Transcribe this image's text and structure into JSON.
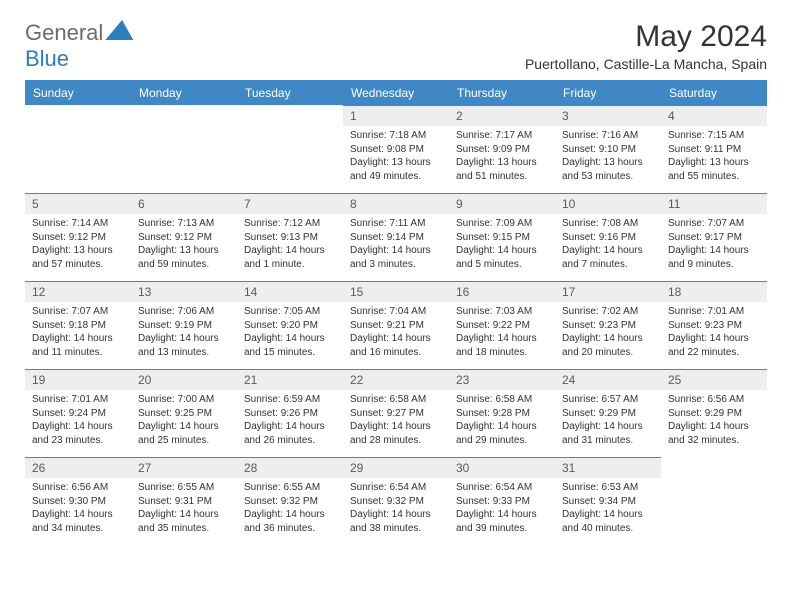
{
  "brand": {
    "text1": "General",
    "text2": "Blue"
  },
  "title": "May 2024",
  "location": "Puertollano, Castille-La Mancha, Spain",
  "colors": {
    "header_bg": "#3f88c5",
    "header_text": "#ffffff",
    "daynum_bg": "#edeef0",
    "daynum_text": "#5a5a5a",
    "border": "#3f88c5",
    "page_bg": "#ffffff",
    "body_text": "#333333",
    "logo_gray": "#6b6b6b",
    "logo_blue": "#2b7fbf"
  },
  "typography": {
    "month_title_fontsize": 30,
    "location_fontsize": 14,
    "weekday_fontsize": 12,
    "daynum_fontsize": 12,
    "info_fontsize": 10
  },
  "weekdays": [
    "Sunday",
    "Monday",
    "Tuesday",
    "Wednesday",
    "Thursday",
    "Friday",
    "Saturday"
  ],
  "first_weekday_index": 3,
  "days": [
    {
      "n": 1,
      "sunrise": "7:18 AM",
      "sunset": "9:08 PM",
      "daylight": "13 hours and 49 minutes."
    },
    {
      "n": 2,
      "sunrise": "7:17 AM",
      "sunset": "9:09 PM",
      "daylight": "13 hours and 51 minutes."
    },
    {
      "n": 3,
      "sunrise": "7:16 AM",
      "sunset": "9:10 PM",
      "daylight": "13 hours and 53 minutes."
    },
    {
      "n": 4,
      "sunrise": "7:15 AM",
      "sunset": "9:11 PM",
      "daylight": "13 hours and 55 minutes."
    },
    {
      "n": 5,
      "sunrise": "7:14 AM",
      "sunset": "9:12 PM",
      "daylight": "13 hours and 57 minutes."
    },
    {
      "n": 6,
      "sunrise": "7:13 AM",
      "sunset": "9:12 PM",
      "daylight": "13 hours and 59 minutes."
    },
    {
      "n": 7,
      "sunrise": "7:12 AM",
      "sunset": "9:13 PM",
      "daylight": "14 hours and 1 minute."
    },
    {
      "n": 8,
      "sunrise": "7:11 AM",
      "sunset": "9:14 PM",
      "daylight": "14 hours and 3 minutes."
    },
    {
      "n": 9,
      "sunrise": "7:09 AM",
      "sunset": "9:15 PM",
      "daylight": "14 hours and 5 minutes."
    },
    {
      "n": 10,
      "sunrise": "7:08 AM",
      "sunset": "9:16 PM",
      "daylight": "14 hours and 7 minutes."
    },
    {
      "n": 11,
      "sunrise": "7:07 AM",
      "sunset": "9:17 PM",
      "daylight": "14 hours and 9 minutes."
    },
    {
      "n": 12,
      "sunrise": "7:07 AM",
      "sunset": "9:18 PM",
      "daylight": "14 hours and 11 minutes."
    },
    {
      "n": 13,
      "sunrise": "7:06 AM",
      "sunset": "9:19 PM",
      "daylight": "14 hours and 13 minutes."
    },
    {
      "n": 14,
      "sunrise": "7:05 AM",
      "sunset": "9:20 PM",
      "daylight": "14 hours and 15 minutes."
    },
    {
      "n": 15,
      "sunrise": "7:04 AM",
      "sunset": "9:21 PM",
      "daylight": "14 hours and 16 minutes."
    },
    {
      "n": 16,
      "sunrise": "7:03 AM",
      "sunset": "9:22 PM",
      "daylight": "14 hours and 18 minutes."
    },
    {
      "n": 17,
      "sunrise": "7:02 AM",
      "sunset": "9:23 PM",
      "daylight": "14 hours and 20 minutes."
    },
    {
      "n": 18,
      "sunrise": "7:01 AM",
      "sunset": "9:23 PM",
      "daylight": "14 hours and 22 minutes."
    },
    {
      "n": 19,
      "sunrise": "7:01 AM",
      "sunset": "9:24 PM",
      "daylight": "14 hours and 23 minutes."
    },
    {
      "n": 20,
      "sunrise": "7:00 AM",
      "sunset": "9:25 PM",
      "daylight": "14 hours and 25 minutes."
    },
    {
      "n": 21,
      "sunrise": "6:59 AM",
      "sunset": "9:26 PM",
      "daylight": "14 hours and 26 minutes."
    },
    {
      "n": 22,
      "sunrise": "6:58 AM",
      "sunset": "9:27 PM",
      "daylight": "14 hours and 28 minutes."
    },
    {
      "n": 23,
      "sunrise": "6:58 AM",
      "sunset": "9:28 PM",
      "daylight": "14 hours and 29 minutes."
    },
    {
      "n": 24,
      "sunrise": "6:57 AM",
      "sunset": "9:29 PM",
      "daylight": "14 hours and 31 minutes."
    },
    {
      "n": 25,
      "sunrise": "6:56 AM",
      "sunset": "9:29 PM",
      "daylight": "14 hours and 32 minutes."
    },
    {
      "n": 26,
      "sunrise": "6:56 AM",
      "sunset": "9:30 PM",
      "daylight": "14 hours and 34 minutes."
    },
    {
      "n": 27,
      "sunrise": "6:55 AM",
      "sunset": "9:31 PM",
      "daylight": "14 hours and 35 minutes."
    },
    {
      "n": 28,
      "sunrise": "6:55 AM",
      "sunset": "9:32 PM",
      "daylight": "14 hours and 36 minutes."
    },
    {
      "n": 29,
      "sunrise": "6:54 AM",
      "sunset": "9:32 PM",
      "daylight": "14 hours and 38 minutes."
    },
    {
      "n": 30,
      "sunrise": "6:54 AM",
      "sunset": "9:33 PM",
      "daylight": "14 hours and 39 minutes."
    },
    {
      "n": 31,
      "sunrise": "6:53 AM",
      "sunset": "9:34 PM",
      "daylight": "14 hours and 40 minutes."
    }
  ]
}
